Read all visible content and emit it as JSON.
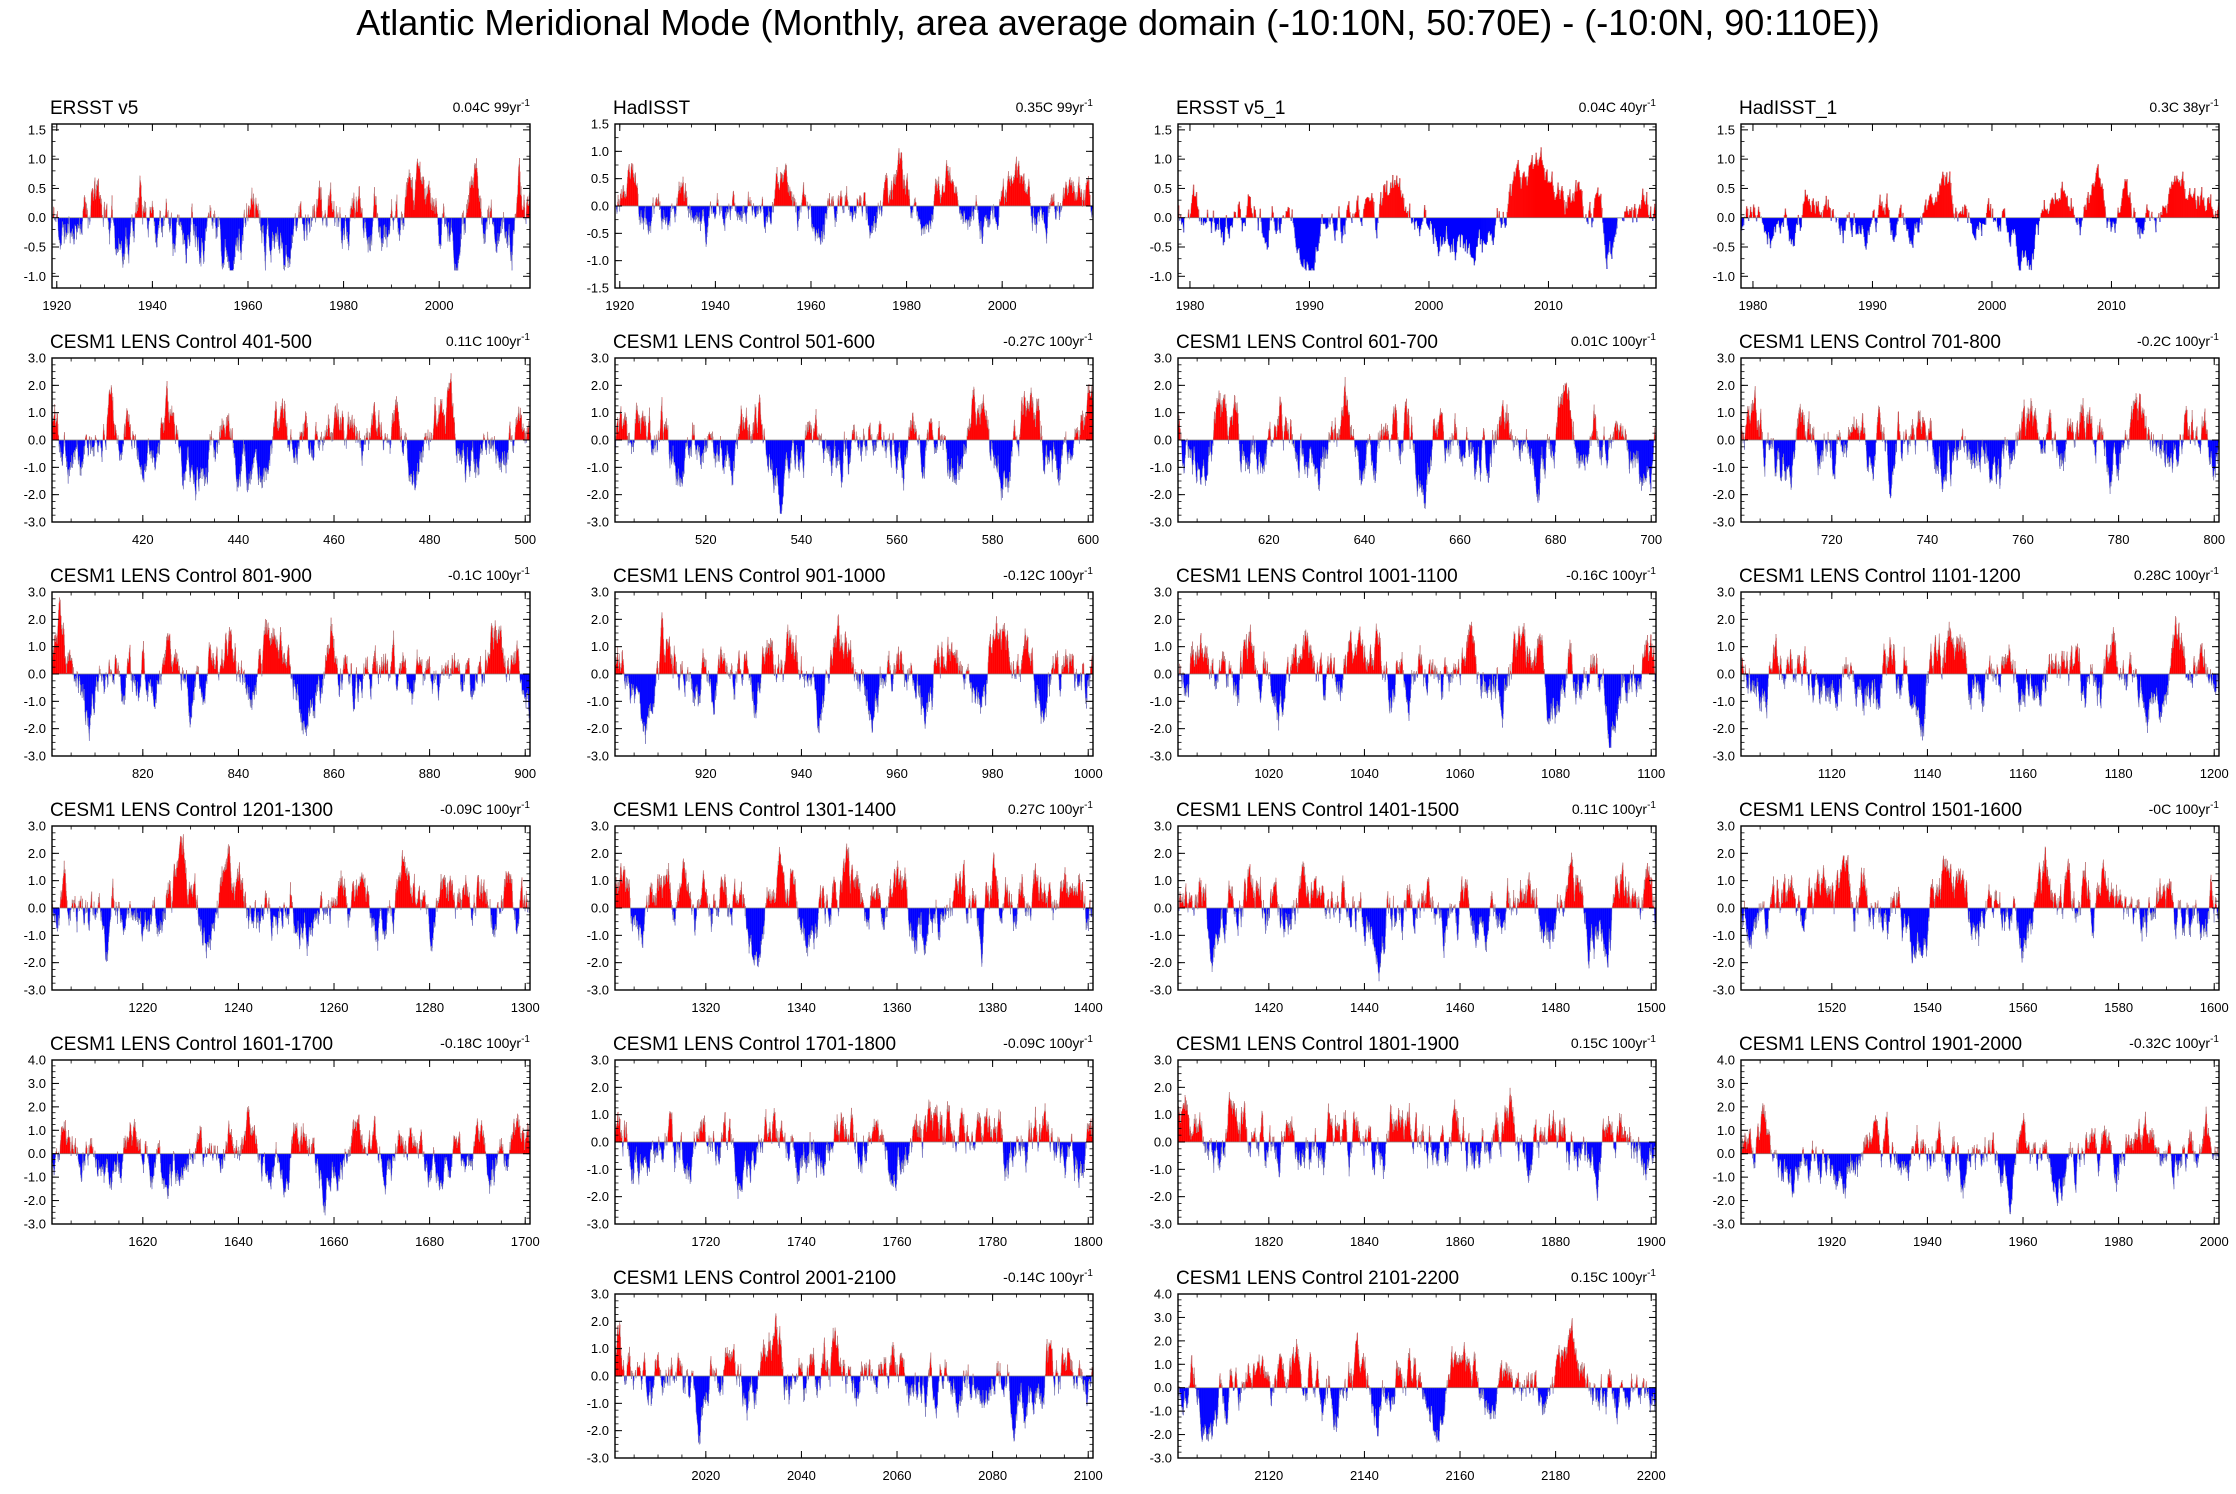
{
  "title": "Atlantic Meridional Mode (Monthly, area average domain (-10:10N, 50:70E) - (-10:0N, 90:110E))",
  "colors": {
    "positive": "#ff0000",
    "negative": "#0000ff",
    "axis": "#000000",
    "line": "#a0a0a0"
  },
  "chart_data": [
    {
      "type": "bar",
      "title": "ERSST v5",
      "trend": "0.04C 99yr",
      "trend_exp": "-1",
      "x_range": [
        1919,
        2019
      ],
      "x_ticks": [
        1920,
        1940,
        1960,
        1980,
        2000
      ],
      "ylim": [
        -1.2,
        1.6
      ],
      "y_ticks": [
        "1.5",
        "1.0",
        "0.5",
        "0.0",
        "-0.5",
        "-1.0"
      ],
      "amplitude": 0.5,
      "seed": 11
    },
    {
      "type": "bar",
      "title": "HadISST",
      "trend": "0.35C 99yr",
      "trend_exp": "-1",
      "x_range": [
        1919,
        2019
      ],
      "x_ticks": [
        1920,
        1940,
        1960,
        1980,
        2000
      ],
      "ylim": [
        -1.5,
        1.5
      ],
      "y_ticks": [
        "1.5",
        "1.0",
        "0.5",
        "0.0",
        "-0.5",
        "-1.0",
        "-1.5"
      ],
      "amplitude": 0.4,
      "seed": 23
    },
    {
      "type": "bar",
      "title": "ERSST v5_1",
      "trend": "0.04C 40yr",
      "trend_exp": "-1",
      "x_range": [
        1979,
        2019
      ],
      "x_ticks": [
        1980,
        1990,
        2000,
        2010
      ],
      "ylim": [
        -1.2,
        1.6
      ],
      "y_ticks": [
        "1.5",
        "1.0",
        "0.5",
        "0.0",
        "-0.5",
        "-1.0"
      ],
      "amplitude": 0.55,
      "seed": 37
    },
    {
      "type": "bar",
      "title": "HadISST_1",
      "trend": "0.3C 38yr",
      "trend_exp": "-1",
      "x_range": [
        1979,
        2019
      ],
      "x_ticks": [
        1980,
        1990,
        2000,
        2010
      ],
      "ylim": [
        -1.2,
        1.6
      ],
      "y_ticks": [
        "1.5",
        "1.0",
        "0.5",
        "0.0",
        "-0.5",
        "-1.0"
      ],
      "amplitude": 0.5,
      "seed": 41
    },
    {
      "type": "bar",
      "title": "CESM1 LENS Control 401-500",
      "trend": "0.11C 100yr",
      "trend_exp": "-1",
      "x_range": [
        401,
        501
      ],
      "x_ticks": [
        420,
        440,
        460,
        480,
        500
      ],
      "ylim": [
        -3.0,
        3.0
      ],
      "y_ticks": [
        "3.0",
        "2.0",
        "1.0",
        "0.0",
        "-1.0",
        "-2.0",
        "-3.0"
      ],
      "amplitude": 1.0,
      "seed": 101
    },
    {
      "type": "bar",
      "title": "CESM1 LENS Control 501-600",
      "trend": "-0.27C 100yr",
      "trend_exp": "-1",
      "x_range": [
        501,
        601
      ],
      "x_ticks": [
        520,
        540,
        560,
        580,
        600
      ],
      "ylim": [
        -3.0,
        3.0
      ],
      "y_ticks": [
        "3.0",
        "2.0",
        "1.0",
        "0.0",
        "-1.0",
        "-2.0",
        "-3.0"
      ],
      "amplitude": 1.0,
      "seed": 102
    },
    {
      "type": "bar",
      "title": "CESM1 LENS Control 601-700",
      "trend": "0.01C 100yr",
      "trend_exp": "-1",
      "x_range": [
        601,
        701
      ],
      "x_ticks": [
        620,
        640,
        660,
        680,
        700
      ],
      "ylim": [
        -3.0,
        3.0
      ],
      "y_ticks": [
        "3.0",
        "2.0",
        "1.0",
        "0.0",
        "-1.0",
        "-2.0",
        "-3.0"
      ],
      "amplitude": 1.0,
      "seed": 103
    },
    {
      "type": "bar",
      "title": "CESM1 LENS Control 701-800",
      "trend": "-0.2C 100yr",
      "trend_exp": "-1",
      "x_range": [
        701,
        801
      ],
      "x_ticks": [
        720,
        740,
        760,
        780,
        800
      ],
      "ylim": [
        -3.0,
        3.0
      ],
      "y_ticks": [
        "3.0",
        "2.0",
        "1.0",
        "0.0",
        "-1.0",
        "-2.0",
        "-3.0"
      ],
      "amplitude": 1.0,
      "seed": 104
    },
    {
      "type": "bar",
      "title": "CESM1 LENS Control 801-900",
      "trend": "-0.1C 100yr",
      "trend_exp": "-1",
      "x_range": [
        801,
        901
      ],
      "x_ticks": [
        820,
        840,
        860,
        880,
        900
      ],
      "ylim": [
        -3.0,
        3.0
      ],
      "y_ticks": [
        "3.0",
        "2.0",
        "1.0",
        "0.0",
        "-1.0",
        "-2.0",
        "-3.0"
      ],
      "amplitude": 1.0,
      "seed": 105
    },
    {
      "type": "bar",
      "title": "CESM1 LENS Control 901-1000",
      "trend": "-0.12C 100yr",
      "trend_exp": "-1",
      "x_range": [
        901,
        1001
      ],
      "x_ticks": [
        920,
        940,
        960,
        980,
        1000
      ],
      "ylim": [
        -3.0,
        3.0
      ],
      "y_ticks": [
        "3.0",
        "2.0",
        "1.0",
        "0.0",
        "-1.0",
        "-2.0",
        "-3.0"
      ],
      "amplitude": 1.0,
      "seed": 106
    },
    {
      "type": "bar",
      "title": "CESM1 LENS Control 1001-1100",
      "trend": "-0.16C 100yr",
      "trend_exp": "-1",
      "x_range": [
        1001,
        1101
      ],
      "x_ticks": [
        1020,
        1040,
        1060,
        1080,
        1100
      ],
      "ylim": [
        -3.0,
        3.0
      ],
      "y_ticks": [
        "3.0",
        "2.0",
        "1.0",
        "0.0",
        "-1.0",
        "-2.0",
        "-3.0"
      ],
      "amplitude": 1.0,
      "seed": 107
    },
    {
      "type": "bar",
      "title": "CESM1 LENS Control 1101-1200",
      "trend": "0.28C 100yr",
      "trend_exp": "-1",
      "x_range": [
        1101,
        1201
      ],
      "x_ticks": [
        1120,
        1140,
        1160,
        1180,
        1200
      ],
      "ylim": [
        -3.0,
        3.0
      ],
      "y_ticks": [
        "3.0",
        "2.0",
        "1.0",
        "0.0",
        "-1.0",
        "-2.0",
        "-3.0"
      ],
      "amplitude": 1.0,
      "seed": 108
    },
    {
      "type": "bar",
      "title": "CESM1 LENS Control 1201-1300",
      "trend": "-0.09C 100yr",
      "trend_exp": "-1",
      "x_range": [
        1201,
        1301
      ],
      "x_ticks": [
        1220,
        1240,
        1260,
        1280,
        1300
      ],
      "ylim": [
        -3.0,
        3.0
      ],
      "y_ticks": [
        "3.0",
        "2.0",
        "1.0",
        "0.0",
        "-1.0",
        "-2.0",
        "-3.0"
      ],
      "amplitude": 1.0,
      "seed": 109
    },
    {
      "type": "bar",
      "title": "CESM1 LENS Control 1301-1400",
      "trend": "0.27C 100yr",
      "trend_exp": "-1",
      "x_range": [
        1301,
        1401
      ],
      "x_ticks": [
        1320,
        1340,
        1360,
        1380,
        1400
      ],
      "ylim": [
        -3.0,
        3.0
      ],
      "y_ticks": [
        "3.0",
        "2.0",
        "1.0",
        "0.0",
        "-1.0",
        "-2.0",
        "-3.0"
      ],
      "amplitude": 1.0,
      "seed": 110
    },
    {
      "type": "bar",
      "title": "CESM1 LENS Control 1401-1500",
      "trend": "0.11C 100yr",
      "trend_exp": "-1",
      "x_range": [
        1401,
        1501
      ],
      "x_ticks": [
        1420,
        1440,
        1460,
        1480,
        1500
      ],
      "ylim": [
        -3.0,
        3.0
      ],
      "y_ticks": [
        "3.0",
        "2.0",
        "1.0",
        "0.0",
        "-1.0",
        "-2.0",
        "-3.0"
      ],
      "amplitude": 1.0,
      "seed": 111
    },
    {
      "type": "bar",
      "title": "CESM1 LENS Control 1501-1600",
      "trend": "-0C 100yr",
      "trend_exp": "-1",
      "x_range": [
        1501,
        1601
      ],
      "x_ticks": [
        1520,
        1540,
        1560,
        1580,
        1600
      ],
      "ylim": [
        -3.0,
        3.0
      ],
      "y_ticks": [
        "3.0",
        "2.0",
        "1.0",
        "0.0",
        "-1.0",
        "-2.0",
        "-3.0"
      ],
      "amplitude": 1.0,
      "seed": 112
    },
    {
      "type": "bar",
      "title": "CESM1 LENS Control 1601-1700",
      "trend": "-0.18C 100yr",
      "trend_exp": "-1",
      "x_range": [
        1601,
        1701
      ],
      "x_ticks": [
        1620,
        1640,
        1660,
        1680,
        1700
      ],
      "ylim": [
        -3.0,
        4.0
      ],
      "y_ticks": [
        "4.0",
        "3.0",
        "2.0",
        "1.0",
        "0.0",
        "-1.0",
        "-2.0",
        "-3.0"
      ],
      "amplitude": 1.0,
      "seed": 113
    },
    {
      "type": "bar",
      "title": "CESM1 LENS Control 1701-1800",
      "trend": "-0.09C 100yr",
      "trend_exp": "-1",
      "x_range": [
        1701,
        1801
      ],
      "x_ticks": [
        1720,
        1740,
        1760,
        1780,
        1800
      ],
      "ylim": [
        -3.0,
        3.0
      ],
      "y_ticks": [
        "3.0",
        "2.0",
        "1.0",
        "0.0",
        "-1.0",
        "-2.0",
        "-3.0"
      ],
      "amplitude": 1.0,
      "seed": 114
    },
    {
      "type": "bar",
      "title": "CESM1 LENS Control 1801-1900",
      "trend": "0.15C 100yr",
      "trend_exp": "-1",
      "x_range": [
        1801,
        1901
      ],
      "x_ticks": [
        1820,
        1840,
        1860,
        1880,
        1900
      ],
      "ylim": [
        -3.0,
        3.0
      ],
      "y_ticks": [
        "3.0",
        "2.0",
        "1.0",
        "0.0",
        "-1.0",
        "-2.0",
        "-3.0"
      ],
      "amplitude": 1.0,
      "seed": 115
    },
    {
      "type": "bar",
      "title": "CESM1 LENS Control 1901-2000",
      "trend": "-0.32C 100yr",
      "trend_exp": "-1",
      "x_range": [
        1901,
        2001
      ],
      "x_ticks": [
        1920,
        1940,
        1960,
        1980,
        2000
      ],
      "ylim": [
        -3.0,
        4.0
      ],
      "y_ticks": [
        "4.0",
        "3.0",
        "2.0",
        "1.0",
        "0.0",
        "-1.0",
        "-2.0",
        "-3.0"
      ],
      "amplitude": 1.0,
      "seed": 116
    },
    {
      "type": "bar",
      "title": "CESM1 LENS Control 2001-2100",
      "trend": "-0.14C 100yr",
      "trend_exp": "-1",
      "x_range": [
        2001,
        2101
      ],
      "x_ticks": [
        2020,
        2040,
        2060,
        2080,
        2100
      ],
      "ylim": [
        -3.0,
        3.0
      ],
      "y_ticks": [
        "3.0",
        "2.0",
        "1.0",
        "0.0",
        "-1.0",
        "-2.0",
        "-3.0"
      ],
      "amplitude": 1.0,
      "seed": 117
    },
    {
      "type": "bar",
      "title": "CESM1 LENS Control 2101-2200",
      "trend": "0.15C 100yr",
      "trend_exp": "-1",
      "x_range": [
        2101,
        2201
      ],
      "x_ticks": [
        2120,
        2140,
        2160,
        2180,
        2200
      ],
      "ylim": [
        -3.0,
        4.0
      ],
      "y_ticks": [
        "4.0",
        "3.0",
        "2.0",
        "1.0",
        "0.0",
        "-1.0",
        "-2.0",
        "-3.0"
      ],
      "amplitude": 1.0,
      "seed": 118
    }
  ]
}
